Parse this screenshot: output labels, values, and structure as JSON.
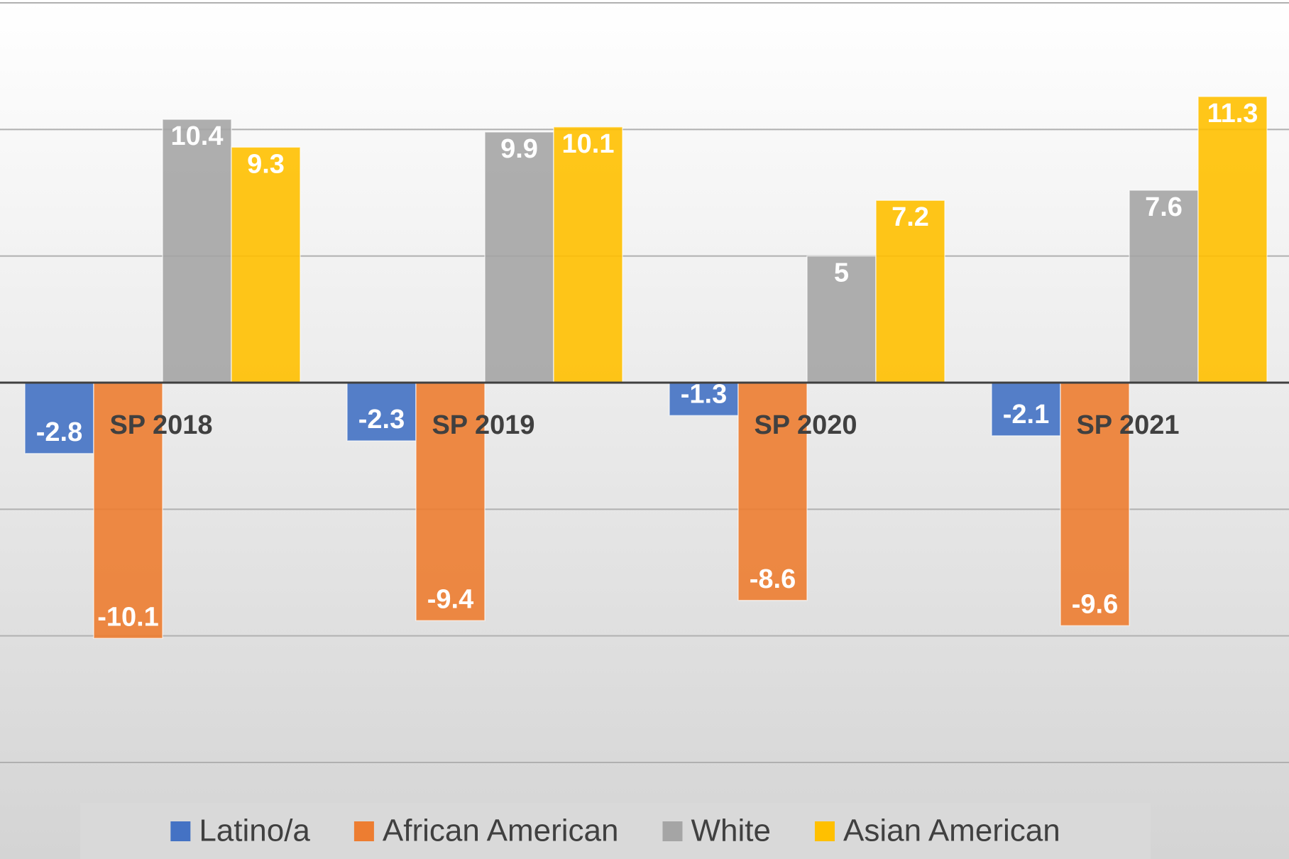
{
  "chart_data": {
    "type": "bar",
    "categories": [
      "SP 2018",
      "SP 2019",
      "SP 2020",
      "SP 2021"
    ],
    "series": [
      {
        "name": "Latino/a",
        "color": "#4472c4",
        "values": [
          -2.8,
          -2.3,
          -1.3,
          -2.1
        ]
      },
      {
        "name": "African American",
        "color": "#ed7d31",
        "values": [
          -10.1,
          -9.4,
          -8.6,
          -9.6
        ]
      },
      {
        "name": "White",
        "color": "#a5a5a5",
        "values": [
          10.4,
          9.9,
          5,
          7.6
        ]
      },
      {
        "name": "Asian American",
        "color": "#ffc000",
        "values": [
          9.3,
          10.1,
          7.2,
          11.3
        ]
      }
    ],
    "ylim": [
      -15,
      15
    ],
    "yticks": [
      -15,
      -10,
      -5,
      0,
      5,
      10,
      15
    ],
    "grid": true,
    "legend": "bottom"
  }
}
